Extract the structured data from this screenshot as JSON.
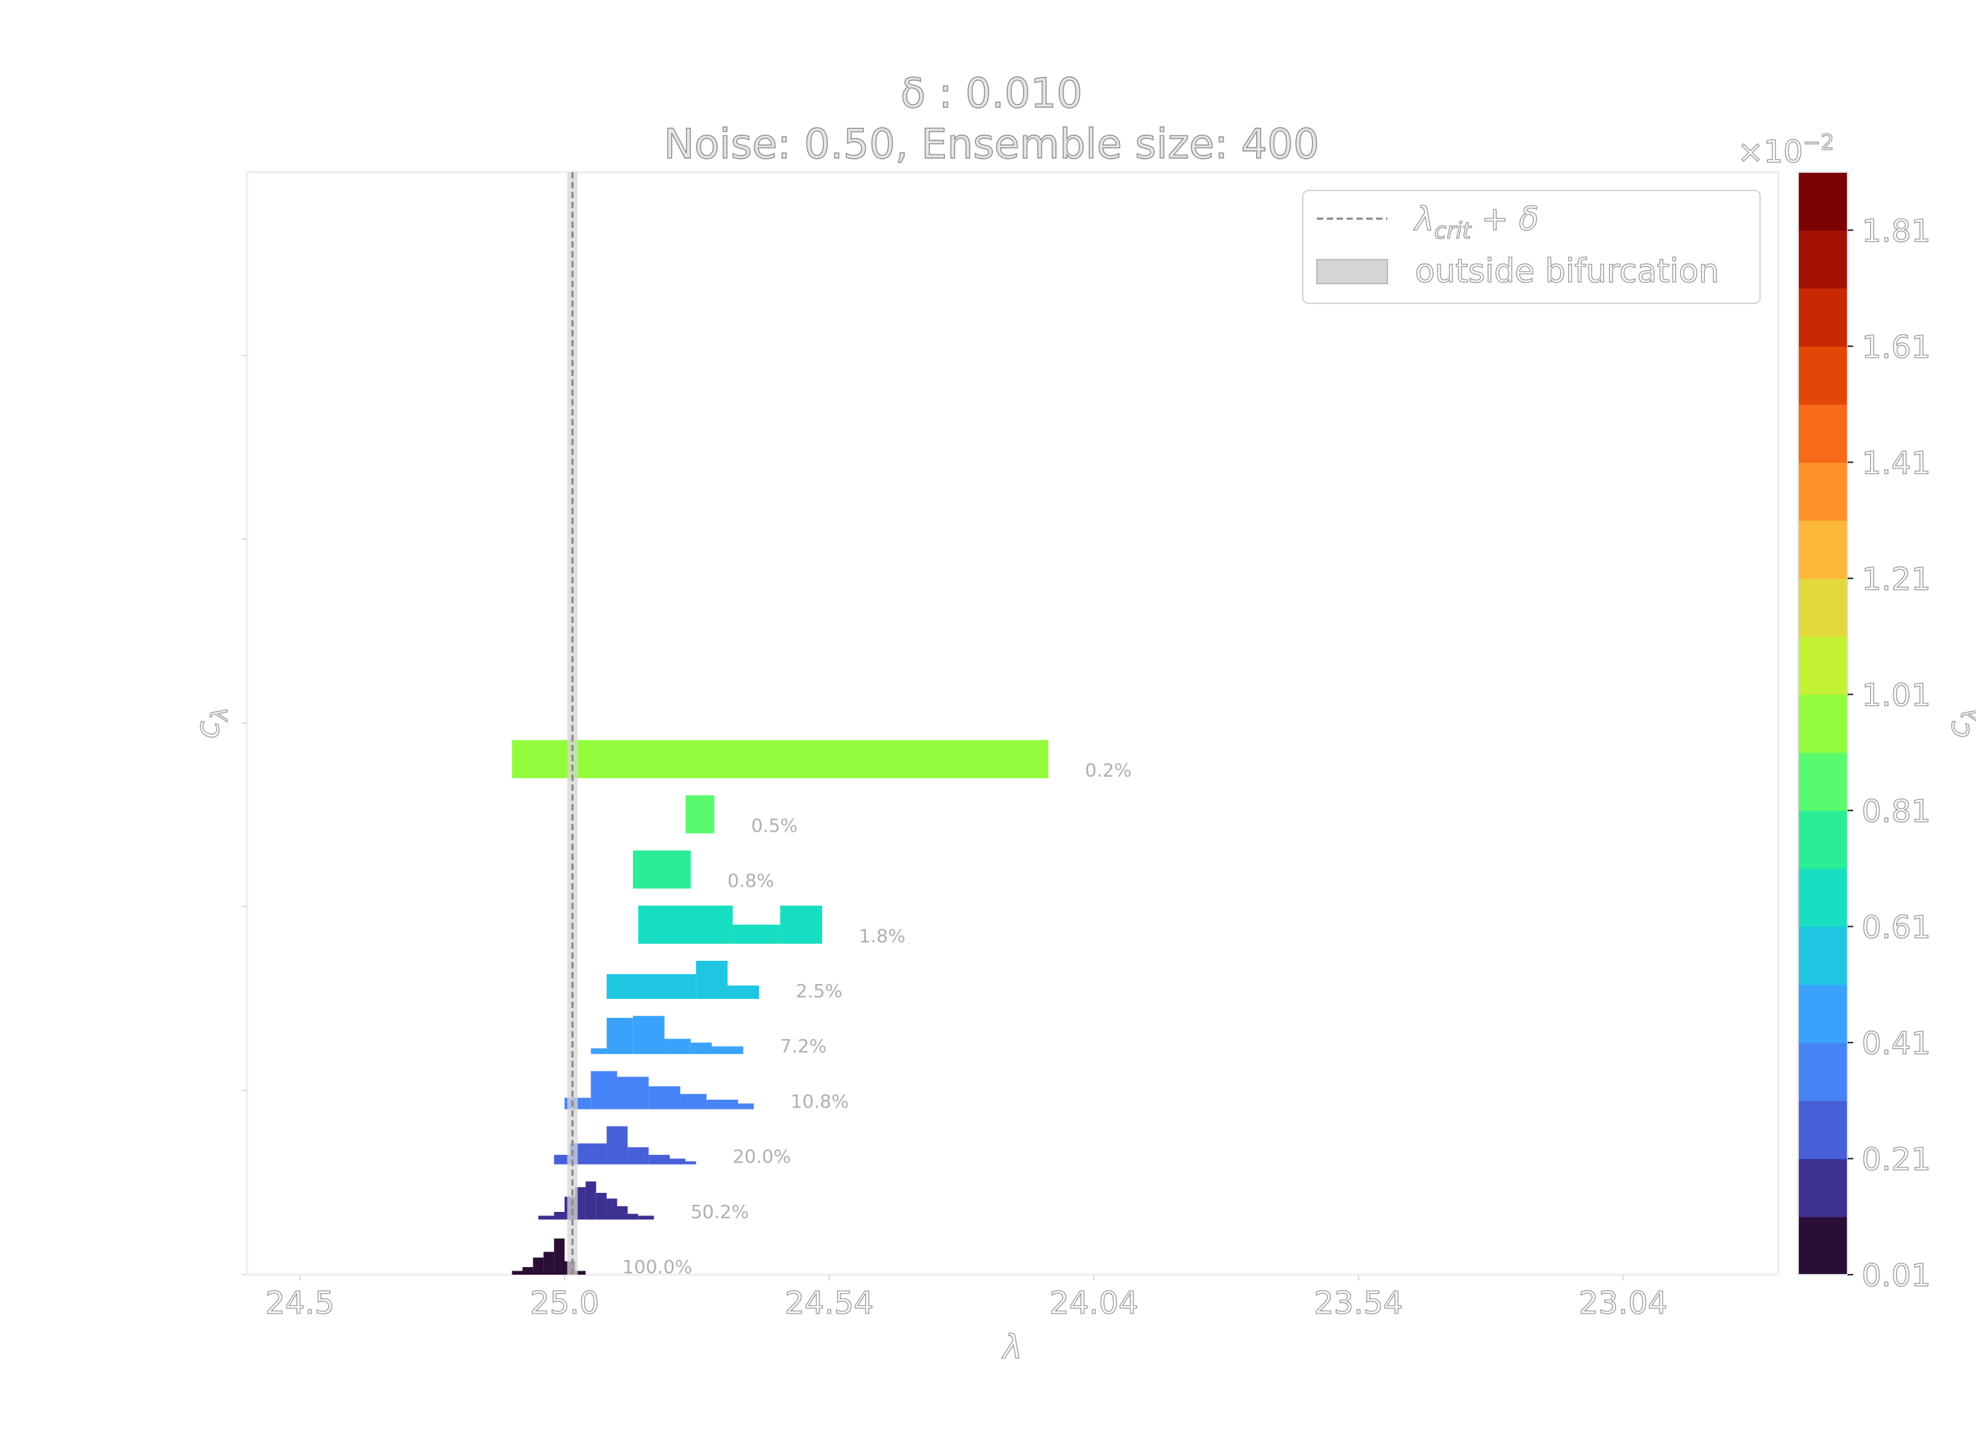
{
  "chart_data": {
    "type": "ridge_histogram",
    "title": "δ : 0.010",
    "subtitle": "Noise: 0.50, Ensemble size: 400",
    "xlabel": "λ",
    "ylabel": "c_λ",
    "x_ticks": [
      "24.5",
      "25.0",
      "24.54",
      "24.04",
      "23.54",
      "23.04"
    ],
    "xlim": [
      24.4,
      23.3
    ],
    "vline": {
      "x": 25.015,
      "label_main": "λ",
      "label_sub": "crit",
      "label_tail": " + δ"
    },
    "band": {
      "x": [
        25.005,
        25.025
      ],
      "label": "outside bifurcation",
      "color": "#d5d5d5"
    },
    "colorbar": {
      "ticks": [
        "0.01",
        "0.21",
        "0.41",
        "0.61",
        "0.81",
        "1.01",
        "1.21",
        "1.41",
        "1.61",
        "1.81"
      ],
      "multiplier": "×10",
      "exponent": "−2",
      "label": "c_λ",
      "colors": [
        "#2a0e36",
        "#3c3190",
        "#4760d8",
        "#4683f6",
        "#3aa2fb",
        "#1ec6e2",
        "#18dec1",
        "#2bec97",
        "#5afa6e",
        "#93fd3d",
        "#c3f134",
        "#e3d93c",
        "#fcb83a",
        "#fc9227",
        "#f66a18",
        "#e34708",
        "#c82902",
        "#a31202",
        "#7a0403"
      ]
    },
    "rows": [
      {
        "label": "100.0%",
        "color": "#2a0e36",
        "bins": [
          [
            24.9,
            25.0,
            0.1
          ],
          [
            24.92,
            24.94,
            0.2
          ],
          [
            24.94,
            24.96,
            0.45
          ],
          [
            24.96,
            24.98,
            0.6
          ],
          [
            24.98,
            25.0,
            0.95
          ],
          [
            25.0,
            25.02,
            0.35
          ],
          [
            25.02,
            25.04,
            0.1
          ]
        ]
      },
      {
        "label": "50.2%",
        "color": "#3c3190",
        "bins": [
          [
            24.95,
            24.98,
            0.1
          ],
          [
            24.98,
            25.0,
            0.2
          ],
          [
            25.0,
            25.02,
            0.6
          ],
          [
            25.02,
            25.04,
            0.85
          ],
          [
            25.04,
            25.06,
            1.0
          ],
          [
            25.06,
            25.08,
            0.7
          ],
          [
            25.08,
            25.1,
            0.55
          ],
          [
            25.1,
            25.12,
            0.35
          ],
          [
            25.12,
            25.14,
            0.15
          ],
          [
            25.14,
            25.17,
            0.1
          ]
        ]
      },
      {
        "label": "20.0%",
        "color": "#4760d8",
        "bins": [
          [
            24.98,
            25.01,
            0.25
          ],
          [
            25.01,
            25.08,
            0.55
          ],
          [
            25.08,
            25.12,
            1.0
          ],
          [
            25.12,
            25.16,
            0.45
          ],
          [
            25.16,
            25.2,
            0.25
          ],
          [
            25.2,
            25.23,
            0.15
          ],
          [
            25.23,
            25.25,
            0.08
          ]
        ]
      },
      {
        "label": "10.8%",
        "color": "#4683f6",
        "bins": [
          [
            25.0,
            25.05,
            0.3
          ],
          [
            25.05,
            25.1,
            1.0
          ],
          [
            25.1,
            25.16,
            0.85
          ],
          [
            25.16,
            25.22,
            0.6
          ],
          [
            25.22,
            25.27,
            0.4
          ],
          [
            25.27,
            25.33,
            0.25
          ],
          [
            25.33,
            25.36,
            0.15
          ]
        ]
      },
      {
        "label": "7.2%",
        "color": "#3aa2fb",
        "bins": [
          [
            25.05,
            25.08,
            0.15
          ],
          [
            25.08,
            25.13,
            0.95
          ],
          [
            25.13,
            25.19,
            1.0
          ],
          [
            25.19,
            25.24,
            0.4
          ],
          [
            25.24,
            25.28,
            0.3
          ],
          [
            25.28,
            25.34,
            0.2
          ]
        ]
      },
      {
        "label": "2.5%",
        "color": "#1ec6e2",
        "bins": [
          [
            25.08,
            25.25,
            0.65
          ],
          [
            25.25,
            25.31,
            1.0
          ],
          [
            25.31,
            25.37,
            0.35
          ]
        ]
      },
      {
        "label": "1.8%",
        "color": "#18dec1",
        "bins": [
          [
            25.14,
            25.32,
            1.0
          ],
          [
            25.32,
            25.41,
            0.5
          ],
          [
            25.41,
            25.49,
            1.0
          ]
        ]
      },
      {
        "label": "0.8%",
        "color": "#2bec97",
        "bins": [
          [
            25.13,
            25.24,
            1.0
          ]
        ]
      },
      {
        "label": "0.5%",
        "color": "#5afa6e",
        "bins": [
          [
            25.23,
            25.285,
            1.0
          ]
        ]
      },
      {
        "label": "0.2%",
        "color": "#93fd3d",
        "bins": [
          [
            24.9,
            25.92,
            1.0
          ]
        ]
      }
    ],
    "legend": {
      "position": "upper-right"
    },
    "grid": false
  }
}
